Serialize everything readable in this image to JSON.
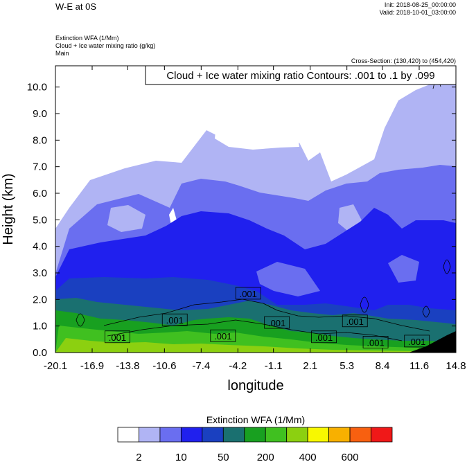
{
  "header": {
    "title": "W-E at 0S",
    "init": "Init: 2018-08-25_00:00:00",
    "valid": "Valid: 2018-10-01_03:00:00"
  },
  "fields": {
    "line1": "Extinction WFA   (1/Mm)",
    "line2": "Cloud + Ice water mixing ratio   (g/kg)",
    "line3": "Main"
  },
  "cross_section": "Cross-Section: (130,420) to (454,420)",
  "chart_data": {
    "type": "heatmap",
    "title": "Cloud + Ice water mixing ratio Contours: .001 to .1 by .099",
    "xlabel": "longitude",
    "ylabel": "Height (km)",
    "xlim": [
      -20.1,
      14.8
    ],
    "ylim": [
      0.0,
      10.8
    ],
    "x_ticks": [
      "-20.1",
      "-16.9",
      "-13.8",
      "-10.6",
      "-7.4",
      "-4.2",
      "-1.1",
      "2.1",
      "5.3",
      "8.4",
      "11.6",
      "14.8"
    ],
    "y_ticks": [
      "0.0",
      "1.0",
      "2.0",
      "3.0",
      "4.0",
      "5.0",
      "6.0",
      "7.0",
      "8.0",
      "9.0",
      "10.0"
    ],
    "contour_labels": [
      {
        "text": ".001",
        "x": -14.7,
        "z": 0.58
      },
      {
        "text": ".001",
        "x": -9.7,
        "z": 1.22
      },
      {
        "text": ".001",
        "x": -5.5,
        "z": 0.62
      },
      {
        "text": ".001",
        "x": -3.3,
        "z": 2.22
      },
      {
        "text": ".001",
        "x": -0.8,
        "z": 1.12
      },
      {
        "text": ".001",
        "x": 3.3,
        "z": 0.58
      },
      {
        "text": ".001",
        "x": 6.0,
        "z": 1.18
      },
      {
        "text": ".001",
        "x": 7.8,
        "z": 0.38
      },
      {
        "text": ".001",
        "x": 11.4,
        "z": 0.42
      }
    ],
    "colorbar": {
      "title": "Extinction WFA  (1/Mm)",
      "colors": [
        "#ffffff",
        "#b0b4f4",
        "#6a6ef0",
        "#2020ee",
        "#1a40c0",
        "#1a7070",
        "#18a020",
        "#40c020",
        "#8cd010",
        "#f8f800",
        "#f8b000",
        "#f86010",
        "#f01818"
      ],
      "labels": [
        "2",
        "10",
        "50",
        "200",
        "400",
        "600"
      ]
    },
    "grid": false
  }
}
